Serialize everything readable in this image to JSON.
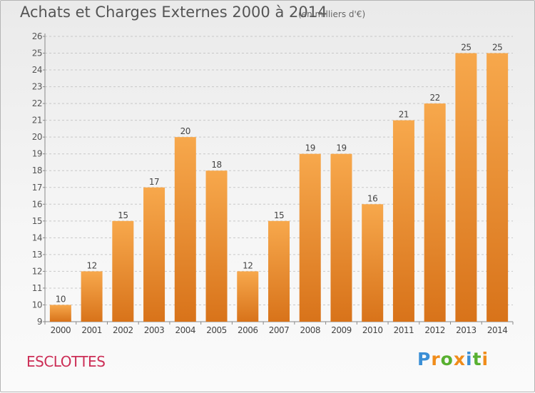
{
  "header": {
    "title": "Achats et Charges Externes 2000 à 2014",
    "unit": "(en milliers d'€)"
  },
  "footer": {
    "commune": "ESCLOTTES",
    "brand": "Proxiti"
  },
  "colors": {
    "bar_light": "#f7a84c",
    "bar_dark": "#d8731a",
    "commune": "#cc2e56",
    "brand_letters": [
      "#3b8fd6",
      "#f08c1a",
      "#58b030",
      "#f08c1a",
      "#3b8fd6",
      "#58b030",
      "#f08c1a"
    ]
  },
  "chart_data": {
    "type": "bar",
    "categories": [
      "2000",
      "2001",
      "2002",
      "2003",
      "2004",
      "2005",
      "2006",
      "2007",
      "2008",
      "2009",
      "2010",
      "2011",
      "2012",
      "2013",
      "2014"
    ],
    "values": [
      10,
      12,
      15,
      17,
      20,
      18,
      12,
      15,
      19,
      19,
      16,
      21,
      22,
      25,
      25
    ],
    "ylim": [
      9,
      26
    ],
    "yticks": [
      9,
      10,
      11,
      12,
      13,
      14,
      15,
      16,
      17,
      18,
      19,
      20,
      21,
      22,
      23,
      24,
      25,
      26
    ],
    "grid": "horizontal dashed",
    "data_labels": true,
    "legend": "none"
  }
}
